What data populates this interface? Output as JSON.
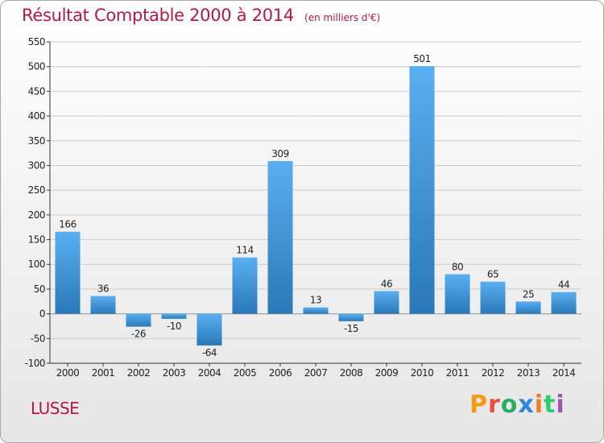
{
  "header": {
    "title": "Résultat Comptable 2000 à 2014",
    "subtitle": "(en milliers d'€)"
  },
  "footer": {
    "commune": "LUSSE",
    "logo_text": "Proxiti"
  },
  "colors": {
    "title": "#b4174c",
    "bar_top": "#5aaff0",
    "bar_bottom": "#2a78b8",
    "grid": "#cccccc",
    "logo_letters": [
      "#f39c12",
      "#e74c3c",
      "#27ae60",
      "#2e86de",
      "#e67e22",
      "#2ecc71",
      "#9b59b6"
    ]
  },
  "chart_data": {
    "type": "bar",
    "categories": [
      "2000",
      "2001",
      "2002",
      "2003",
      "2004",
      "2005",
      "2006",
      "2007",
      "2008",
      "2009",
      "2010",
      "2011",
      "2012",
      "2013",
      "2014"
    ],
    "values": [
      166,
      36,
      -26,
      -10,
      -64,
      114,
      309,
      13,
      -15,
      46,
      501,
      80,
      65,
      25,
      44
    ],
    "title": "Résultat Comptable 2000 à 2014",
    "ylim": [
      -100,
      550
    ],
    "yticks": [
      -100,
      -50,
      0,
      50,
      100,
      150,
      200,
      250,
      300,
      350,
      400,
      450,
      500,
      550
    ],
    "grid": true,
    "legend": "none"
  }
}
